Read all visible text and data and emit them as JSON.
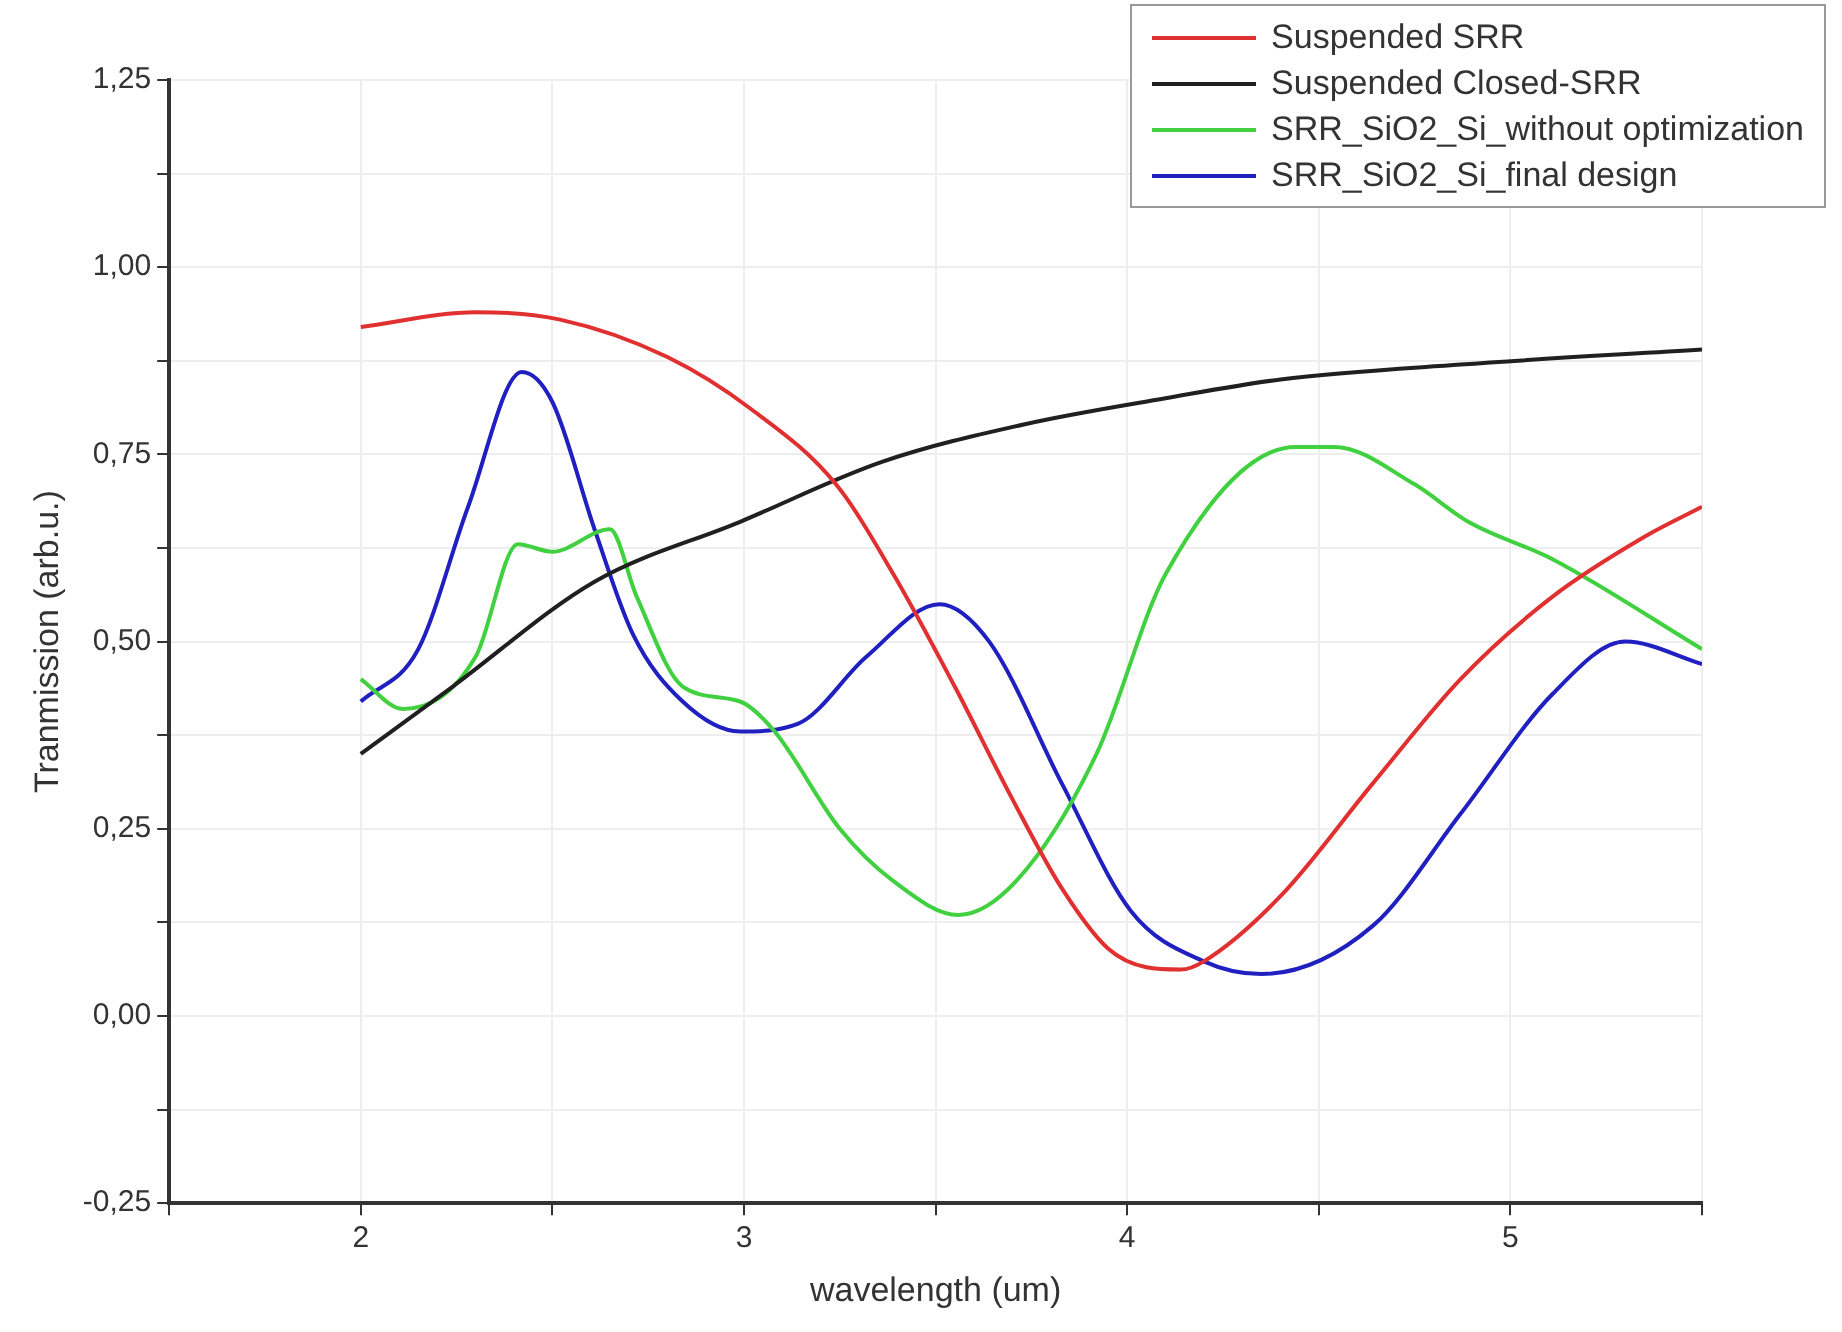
{
  "chart_data": {
    "type": "line",
    "xlabel": "wavelength (um)",
    "ylabel": "Tranmission (arb.u.)",
    "xlim": [
      1.5,
      5.5
    ],
    "xticks": [
      {
        "value": 1.5,
        "label": null
      },
      2,
      {
        "value": 2.5,
        "label": null
      },
      3,
      {
        "value": 3.5,
        "label": null
      },
      4,
      {
        "value": 4.5,
        "label": null
      },
      5,
      {
        "value": 5.5,
        "label": null
      }
    ],
    "ylim": [
      -0.25,
      1.25
    ],
    "yticks": [
      {
        "value": -0.25,
        "label": "-0,25"
      },
      {
        "value": -0.125,
        "label": null
      },
      {
        "value": 0,
        "label": "0,00"
      },
      {
        "value": 0.125,
        "label": null
      },
      {
        "value": 0.25,
        "label": "0,25"
      },
      {
        "value": 0.375,
        "label": null
      },
      {
        "value": 0.5,
        "label": "0,50"
      },
      {
        "value": 0.625,
        "label": null
      },
      {
        "value": 0.75,
        "label": "0,75"
      },
      {
        "value": 0.875,
        "label": null
      },
      {
        "value": 1,
        "label": "1,00"
      },
      {
        "value": 1.125,
        "label": null
      },
      {
        "value": 1.25,
        "label": "1,25"
      }
    ],
    "grid": true,
    "legend": "top right",
    "marker": "none",
    "line_style": "solid",
    "series": [
      {
        "name": "Suspended SRR",
        "color": "#e03030",
        "x": [
          2.0,
          2.3,
          2.52,
          2.8,
          3.02,
          3.24,
          3.39,
          3.55,
          3.7,
          3.83,
          3.95,
          4.05,
          4.14,
          4.2,
          4.4,
          4.64,
          4.87,
          5.11,
          5.35,
          5.5
        ],
        "values": [
          0.92,
          0.94,
          0.93,
          0.88,
          0.81,
          0.71,
          0.59,
          0.44,
          0.29,
          0.17,
          0.09,
          0.065,
          0.062,
          0.073,
          0.16,
          0.31,
          0.45,
          0.56,
          0.64,
          0.68
        ]
      },
      {
        "name": "Suspended Closed-SRR",
        "color": "#202020",
        "x": [
          2.0,
          2.24,
          2.61,
          2.99,
          3.36,
          3.73,
          4.1,
          4.4,
          4.87,
          5.5
        ],
        "values": [
          0.35,
          0.44,
          0.58,
          0.66,
          0.74,
          0.79,
          0.825,
          0.85,
          0.87,
          0.89
        ]
      },
      {
        "name": "SRR_SiO2_Si_without optimization",
        "color": "#40d040",
        "x": [
          2.0,
          2.11,
          2.3,
          2.41,
          2.5,
          2.65,
          2.72,
          2.84,
          2.99,
          3.08,
          3.25,
          3.39,
          3.56,
          3.71,
          3.92,
          4.1,
          4.44,
          4.54,
          4.75,
          4.89,
          5.11,
          5.5
        ],
        "values": [
          0.45,
          0.41,
          0.48,
          0.63,
          0.62,
          0.65,
          0.56,
          0.44,
          0.42,
          0.38,
          0.25,
          0.18,
          0.135,
          0.18,
          0.35,
          0.59,
          0.76,
          0.76,
          0.71,
          0.66,
          0.61,
          0.49
        ]
      },
      {
        "name": "SRR_SiO2_Si_final design",
        "color": "#2020c0",
        "x": [
          2.0,
          2.15,
          2.28,
          2.42,
          2.5,
          2.61,
          2.71,
          2.84,
          2.99,
          3.14,
          3.32,
          3.51,
          3.64,
          3.83,
          4.01,
          4.2,
          4.35,
          4.64,
          4.87,
          5.11,
          5.3,
          5.5
        ],
        "values": [
          0.42,
          0.49,
          0.68,
          0.86,
          0.82,
          0.65,
          0.51,
          0.42,
          0.38,
          0.39,
          0.48,
          0.55,
          0.5,
          0.31,
          0.14,
          0.073,
          0.056,
          0.12,
          0.27,
          0.43,
          0.5,
          0.47
        ]
      }
    ]
  }
}
